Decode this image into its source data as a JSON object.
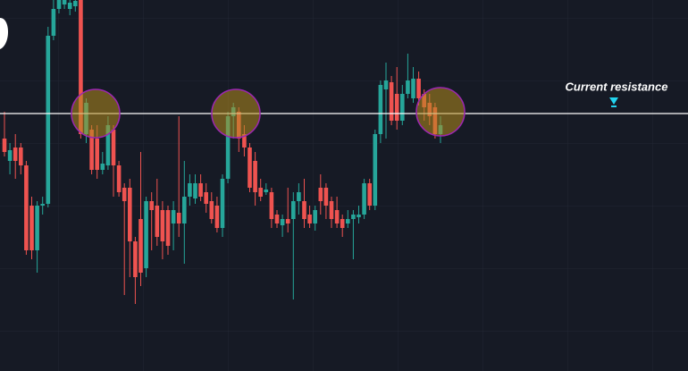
{
  "chart_data": {
    "type": "candlestick",
    "annotation": "Current resistance",
    "resistance_level": 288,
    "ylim": [
      0,
      415
    ],
    "up_color": "#26a69a",
    "down_color": "#ef5350",
    "line_color": "#ffffff",
    "open": [
      260,
      235,
      250,
      250,
      230,
      185,
      135,
      185,
      187,
      375,
      405,
      410,
      405,
      408,
      415,
      265,
      270,
      260,
      225,
      230,
      270,
      230,
      205,
      205,
      145,
      170,
      115,
      190,
      185,
      180,
      180,
      165,
      177,
      165,
      195,
      193,
      210,
      200,
      190,
      185,
      160,
      215,
      285,
      290,
      265,
      250,
      235,
      205,
      200,
      200,
      175,
      163,
      170,
      170,
      190,
      190,
      175,
      165,
      205,
      205,
      190,
      180,
      170,
      165,
      170,
      172,
      175,
      210,
      185,
      265,
      315,
      323,
      310,
      280,
      310,
      305,
      327,
      310,
      300,
      295,
      265
    ],
    "high": [
      290,
      255,
      265,
      255,
      235,
      195,
      190,
      195,
      385,
      415,
      415,
      415,
      415,
      415,
      415,
      305,
      275,
      275,
      245,
      285,
      275,
      235,
      210,
      215,
      150,
      245,
      195,
      200,
      215,
      190,
      185,
      190,
      285,
      235,
      220,
      220,
      220,
      210,
      200,
      195,
      220,
      290,
      300,
      295,
      275,
      255,
      245,
      215,
      210,
      205,
      180,
      175,
      205,
      200,
      210,
      215,
      185,
      185,
      220,
      210,
      195,
      195,
      175,
      180,
      180,
      185,
      215,
      215,
      270,
      325,
      345,
      330,
      340,
      320,
      355,
      340,
      335,
      315,
      310,
      300,
      285
    ],
    "low": [
      240,
      220,
      215,
      220,
      130,
      125,
      110,
      175,
      183,
      370,
      400,
      405,
      398,
      402,
      260,
      255,
      220,
      215,
      220,
      225,
      195,
      195,
      85,
      105,
      75,
      95,
      105,
      135,
      140,
      125,
      130,
      135,
      150,
      120,
      185,
      187,
      190,
      177,
      165,
      155,
      150,
      210,
      260,
      245,
      240,
      200,
      185,
      190,
      197,
      160,
      160,
      150,
      155,
      80,
      175,
      160,
      160,
      157,
      175,
      170,
      160,
      160,
      150,
      160,
      125,
      165,
      170,
      180,
      180,
      255,
      260,
      275,
      270,
      275,
      305,
      300,
      297,
      280,
      275,
      260,
      255
    ],
    "close": [
      245,
      247,
      235,
      230,
      135,
      135,
      185,
      187,
      375,
      405,
      415,
      415,
      412,
      414,
      265,
      300,
      225,
      225,
      232,
      275,
      230,
      200,
      190,
      145,
      105,
      110,
      190,
      180,
      150,
      145,
      140,
      180,
      165,
      195,
      210,
      210,
      195,
      187,
      170,
      160,
      215,
      285,
      295,
      260,
      250,
      205,
      200,
      195,
      203,
      170,
      165,
      170,
      165,
      190,
      200,
      170,
      165,
      180,
      190,
      185,
      170,
      165,
      160,
      170,
      175,
      175,
      210,
      185,
      265,
      320,
      325,
      280,
      280,
      310,
      325,
      327,
      305,
      295,
      285,
      265,
      275
    ]
  }
}
